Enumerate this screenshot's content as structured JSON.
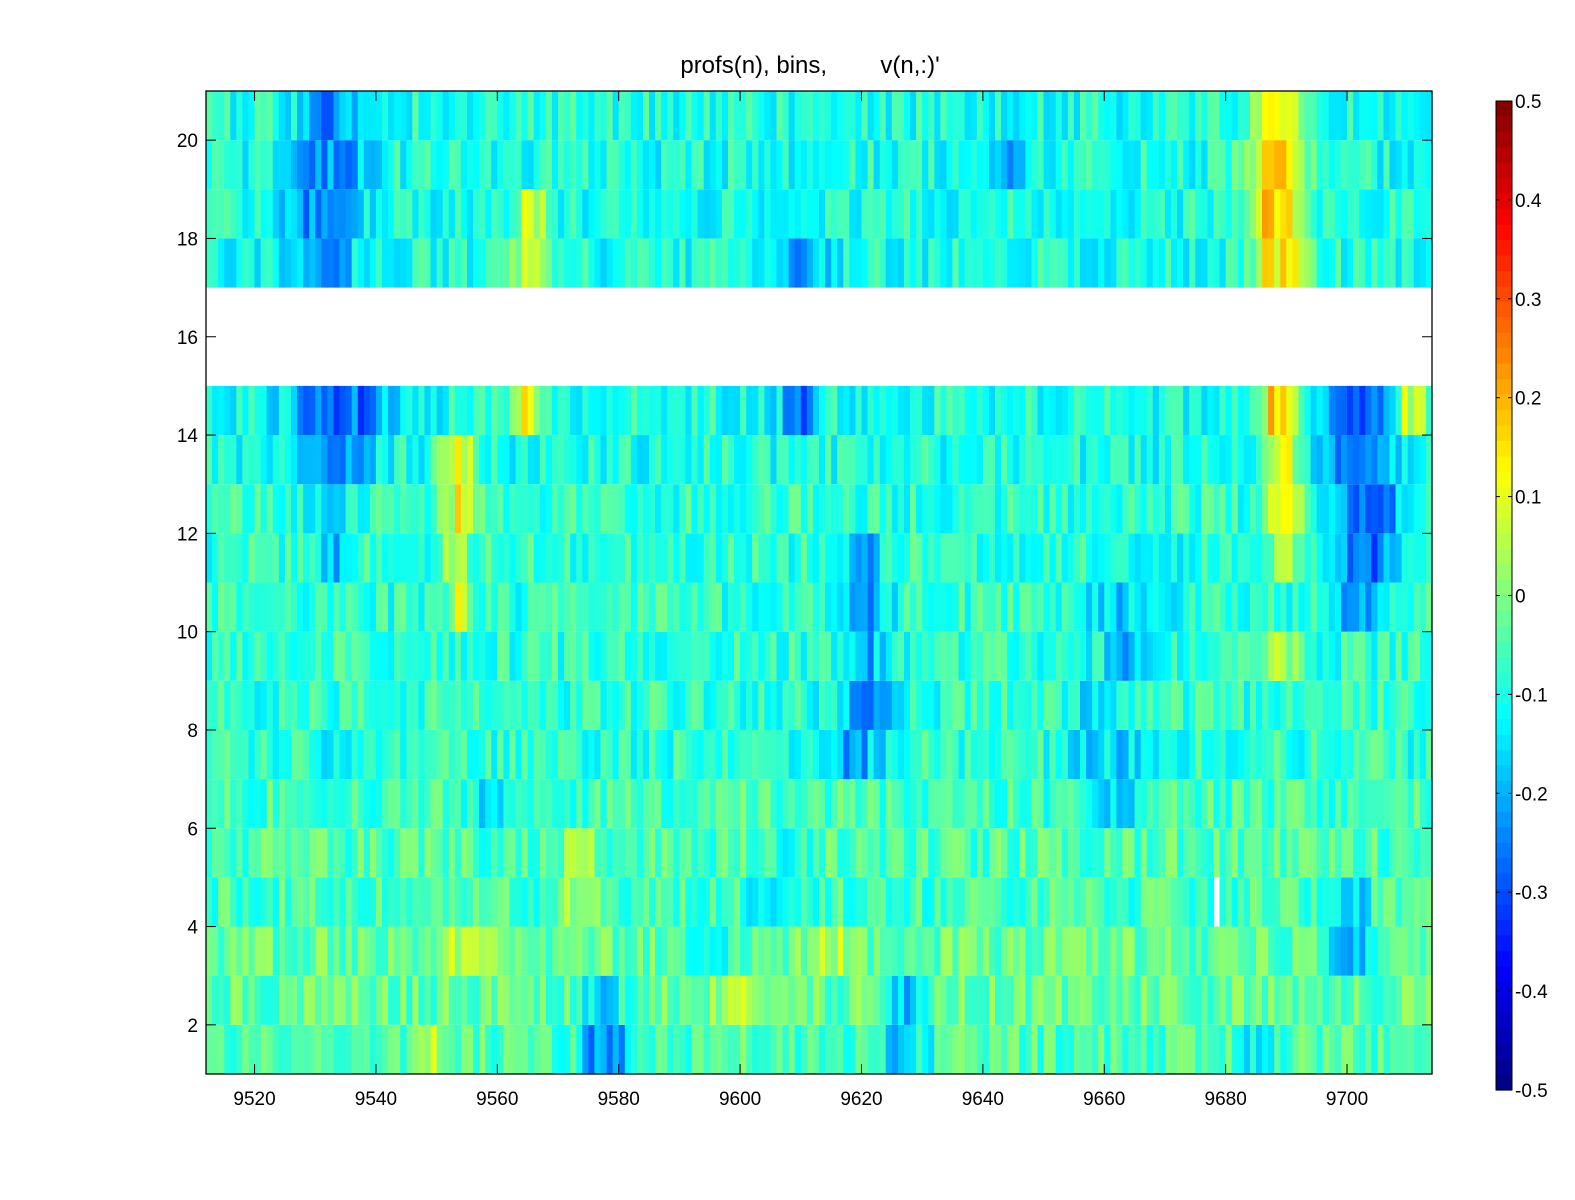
{
  "chart_data": {
    "type": "heatmap",
    "title": "profs(n), bins,        v(n,:)'",
    "xlabel": "",
    "ylabel": "",
    "xlim": [
      9512,
      9714
    ],
    "ylim": [
      1,
      21
    ],
    "xticks": [
      "9520",
      "9540",
      "9560",
      "9580",
      "9600",
      "9620",
      "9640",
      "9660",
      "9680",
      "9700"
    ],
    "yticks": [
      "2",
      "4",
      "6",
      "8",
      "10",
      "12",
      "14",
      "16",
      "18",
      "20"
    ],
    "colorbar": {
      "limits": [
        -0.5,
        0.5
      ],
      "colormap": "jet",
      "ticks": [
        "0.5",
        "0.4",
        "0.3",
        "0.2",
        "0.1",
        "0",
        "-0.1",
        "-0.2",
        "-0.3",
        "-0.4",
        "-0.5"
      ]
    },
    "grid": false,
    "x_bin_width": 1,
    "row_height": 1,
    "nan_rows": [
      1,
      17
    ],
    "nan_cells": [
      {
        "x": 9678,
        "row": 5
      }
    ],
    "rows": [
      {
        "row": 2,
        "base": -0.05,
        "features": [
          {
            "x": 9549,
            "w": 2,
            "v": 0.1
          },
          {
            "x": 9578,
            "w": 6,
            "v": -0.28
          },
          {
            "x": 9626,
            "w": 6,
            "v": -0.2
          },
          {
            "x": 9685,
            "w": 3,
            "v": -0.2
          }
        ]
      },
      {
        "row": 3,
        "base": -0.03,
        "features": [
          {
            "x": 9577,
            "w": 5,
            "v": -0.18
          },
          {
            "x": 9598,
            "w": 4,
            "v": 0.05
          },
          {
            "x": 9627,
            "w": 5,
            "v": -0.2
          }
        ]
      },
      {
        "row": 4,
        "base": -0.03,
        "features": [
          {
            "x": 9554,
            "w": 6,
            "v": 0.1
          },
          {
            "x": 9594,
            "w": 6,
            "v": -0.12
          },
          {
            "x": 9614,
            "w": 4,
            "v": 0.08
          },
          {
            "x": 9700,
            "w": 5,
            "v": -0.25
          }
        ]
      },
      {
        "row": 5,
        "base": -0.06,
        "features": [
          {
            "x": 9573,
            "w": 4,
            "v": 0.1
          },
          {
            "x": 9605,
            "w": 6,
            "v": -0.15
          },
          {
            "x": 9700,
            "w": 4,
            "v": -0.2
          }
        ]
      },
      {
        "row": 6,
        "base": -0.05,
        "features": [
          {
            "x": 9573,
            "w": 4,
            "v": 0.08
          },
          {
            "x": 9608,
            "w": 4,
            "v": -0.15
          }
        ]
      },
      {
        "row": 7,
        "base": -0.06,
        "features": [
          {
            "x": 9558,
            "w": 6,
            "v": -0.14
          },
          {
            "x": 9660,
            "w": 8,
            "v": -0.18
          }
        ]
      },
      {
        "row": 8,
        "base": -0.08,
        "features": [
          {
            "x": 9533,
            "w": 6,
            "v": -0.15
          },
          {
            "x": 9618,
            "w": 8,
            "v": -0.22
          },
          {
            "x": 9660,
            "w": 10,
            "v": -0.18
          }
        ]
      },
      {
        "row": 9,
        "base": -0.08,
        "features": [
          {
            "x": 9620,
            "w": 8,
            "v": -0.22
          },
          {
            "x": 9659,
            "w": 6,
            "v": -0.2
          }
        ]
      },
      {
        "row": 10,
        "base": -0.08,
        "features": [
          {
            "x": 9620,
            "w": 6,
            "v": -0.2
          },
          {
            "x": 9663,
            "w": 6,
            "v": -0.2
          },
          {
            "x": 9689,
            "w": 4,
            "v": 0.05
          }
        ]
      },
      {
        "row": 11,
        "base": -0.08,
        "features": [
          {
            "x": 9553,
            "w": 3,
            "v": 0.08
          },
          {
            "x": 9620,
            "w": 6,
            "v": -0.22
          },
          {
            "x": 9663,
            "w": 8,
            "v": -0.2
          },
          {
            "x": 9702,
            "w": 6,
            "v": -0.28
          }
        ]
      },
      {
        "row": 12,
        "base": -0.08,
        "features": [
          {
            "x": 9533,
            "w": 4,
            "v": -0.2
          },
          {
            "x": 9553,
            "w": 3,
            "v": 0.08
          },
          {
            "x": 9620,
            "w": 4,
            "v": -0.22
          },
          {
            "x": 9667,
            "w": 6,
            "v": -0.2
          },
          {
            "x": 9702,
            "w": 6,
            "v": -0.32
          },
          {
            "x": 9689,
            "w": 3,
            "v": 0.1
          }
        ]
      },
      {
        "row": 13,
        "base": -0.08,
        "features": [
          {
            "x": 9532,
            "w": 4,
            "v": -0.22
          },
          {
            "x": 9553,
            "w": 4,
            "v": 0.12
          },
          {
            "x": 9703,
            "w": 6,
            "v": -0.35
          },
          {
            "x": 9689,
            "w": 4,
            "v": 0.15
          }
        ]
      },
      {
        "row": 14,
        "base": -0.1,
        "features": [
          {
            "x": 9532,
            "w": 8,
            "v": -0.28
          },
          {
            "x": 9553,
            "w": 4,
            "v": 0.12
          },
          {
            "x": 9701,
            "w": 8,
            "v": -0.3
          },
          {
            "x": 9689,
            "w": 4,
            "v": 0.12
          }
        ]
      },
      {
        "row": 15,
        "base": -0.1,
        "features": [
          {
            "x": 9534,
            "w": 12,
            "v": -0.3
          },
          {
            "x": 9564,
            "w": 4,
            "v": 0.15
          },
          {
            "x": 9609,
            "w": 4,
            "v": -0.28
          },
          {
            "x": 9688,
            "w": 4,
            "v": 0.18
          },
          {
            "x": 9702,
            "w": 8,
            "v": -0.28
          },
          {
            "x": 9710,
            "w": 4,
            "v": 0.12
          }
        ]
      },
      {
        "row": 18,
        "base": -0.1,
        "features": [
          {
            "x": 9530,
            "w": 8,
            "v": -0.25
          },
          {
            "x": 9565,
            "w": 4,
            "v": 0.1
          },
          {
            "x": 9610,
            "w": 6,
            "v": -0.22
          },
          {
            "x": 9688,
            "w": 6,
            "v": 0.2
          }
        ]
      },
      {
        "row": 19,
        "base": -0.1,
        "features": [
          {
            "x": 9530,
            "w": 8,
            "v": -0.25
          },
          {
            "x": 9565,
            "w": 4,
            "v": 0.08
          },
          {
            "x": 9688,
            "w": 6,
            "v": 0.22
          }
        ]
      },
      {
        "row": 20,
        "base": -0.1,
        "features": [
          {
            "x": 9532,
            "w": 8,
            "v": -0.27
          },
          {
            "x": 9644,
            "w": 6,
            "v": -0.22
          },
          {
            "x": 9688,
            "w": 6,
            "v": 0.2
          }
        ]
      },
      {
        "row": 21,
        "base": -0.1,
        "features": [
          {
            "x": 9532,
            "w": 6,
            "v": -0.25
          },
          {
            "x": 9688,
            "w": 6,
            "v": 0.22
          }
        ]
      }
    ]
  }
}
